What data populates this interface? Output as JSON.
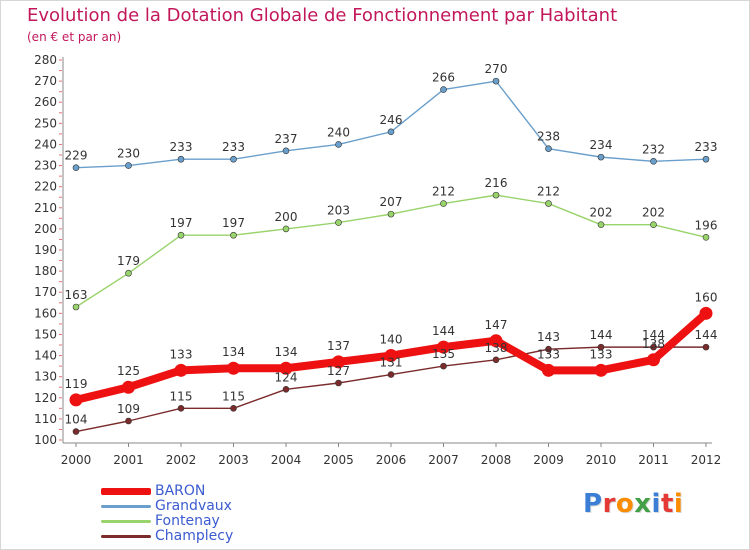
{
  "header": {
    "title": "Evolution de la Dotation Globale de Fonctionnement par Habitant",
    "subtitle": "(en € et par an)"
  },
  "logo": {
    "letters": [
      "P",
      "r",
      "o",
      "x",
      "i",
      "t",
      "i"
    ],
    "colors": [
      "#3a7fd5",
      "#e53935",
      "#fb8c00",
      "#43a047",
      "#3a7fd5",
      "#e53935",
      "#fb8c00"
    ]
  },
  "chart_data": {
    "type": "line",
    "title": "Evolution de la Dotation Globale de Fonctionnement par Habitant",
    "subtitle": "(en € et par an)",
    "xlabel": "",
    "ylabel": "",
    "categories": [
      "2000",
      "2001",
      "2002",
      "2003",
      "2004",
      "2005",
      "2006",
      "2007",
      "2008",
      "2009",
      "2010",
      "2011",
      "2012"
    ],
    "ylim": [
      100,
      280
    ],
    "yticks": [
      100,
      110,
      120,
      130,
      140,
      150,
      160,
      170,
      180,
      190,
      200,
      210,
      220,
      230,
      240,
      250,
      260,
      270,
      280
    ],
    "grid": false,
    "legend_position": "bottom-left",
    "series": [
      {
        "name": "BARON",
        "color": "#ee1111",
        "values": [
          119,
          125,
          133,
          134,
          134,
          137,
          140,
          144,
          147,
          133,
          133,
          138,
          160
        ],
        "labels": [
          "119",
          "125",
          "133",
          "134",
          "134",
          "137",
          "140",
          "144",
          "147",
          "133",
          "133",
          "138",
          "160"
        ]
      },
      {
        "name": "Grandvaux",
        "color": "#6a9fcb",
        "values": [
          229,
          230,
          233,
          233,
          237,
          240,
          246,
          266,
          270,
          238,
          234,
          232,
          233
        ],
        "labels": [
          "229",
          "230",
          "233",
          "233",
          "237",
          "240",
          "246",
          "266",
          "270",
          "238",
          "234",
          "232",
          "233"
        ]
      },
      {
        "name": "Fontenay",
        "color": "#99d36b",
        "values": [
          163,
          179,
          197,
          197,
          200,
          203,
          207,
          212,
          216,
          212,
          202,
          202,
          196
        ],
        "labels": [
          "163",
          "179",
          "197",
          "197",
          "200",
          "203",
          "207",
          "212",
          "216",
          "212",
          "202",
          "202",
          "196"
        ]
      },
      {
        "name": "Champlecy",
        "color": "#7b2b2b",
        "values": [
          104,
          109,
          115,
          115,
          124,
          127,
          131,
          135,
          138,
          143,
          144,
          144,
          144
        ],
        "labels": [
          "104",
          "109",
          "115",
          "115",
          "124",
          "127",
          "131",
          "135",
          "138",
          "143",
          "144",
          "144",
          "144"
        ]
      }
    ]
  }
}
